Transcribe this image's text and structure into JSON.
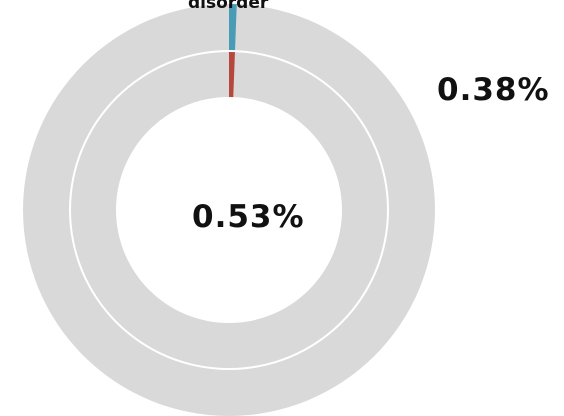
{
  "chart_data": {
    "type": "donut",
    "category_label": "disorder",
    "rings": [
      {
        "ring": "outer",
        "value_percent": 0.38,
        "label": "0.38%",
        "color": "#4a9bb5",
        "remainder_color": "#d9d9d9"
      },
      {
        "ring": "inner",
        "value_percent": 0.53,
        "label": "0.53%",
        "color": "#b5473f",
        "remainder_color": "#d9d9d9"
      }
    ],
    "separator_color": "#ffffff"
  }
}
